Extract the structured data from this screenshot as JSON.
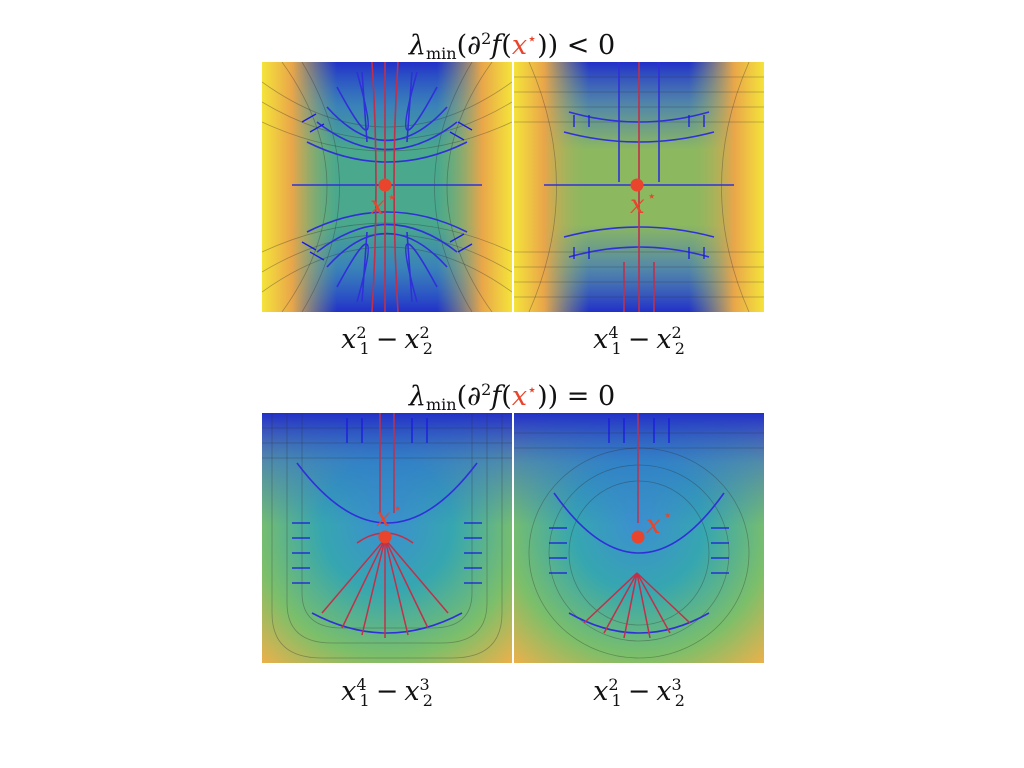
{
  "figure": {
    "top_title": {
      "lambda": "λ",
      "sub": "min",
      "open": "(∂",
      "sq": "2",
      "f": "f",
      "paren": "(",
      "x": "x",
      "star": "⋆",
      "close": "))",
      "relation": "< 0"
    },
    "bottom_title": {
      "lambda": "λ",
      "sub": "min",
      "open": "(∂",
      "sq": "2",
      "f": "f",
      "paren": "(",
      "x": "x",
      "star": "⋆",
      "close": "))",
      "relation": "= 0"
    },
    "point_label": "x",
    "point_star": "⋆",
    "panels": [
      {
        "id": "tl",
        "caption": {
          "a": "x",
          "a_sup": "2",
          "a_sub": "1",
          "op": "−",
          "b": "x",
          "b_sup": "2",
          "b_sub": "2"
        }
      },
      {
        "id": "tr",
        "caption": {
          "a": "x",
          "a_sup": "4",
          "a_sub": "1",
          "op": "−",
          "b": "x",
          "b_sup": "2",
          "b_sub": "2"
        }
      },
      {
        "id": "bl",
        "caption": {
          "a": "x",
          "a_sup": "4",
          "a_sub": "1",
          "op": "−",
          "b": "x",
          "b_sup": "3",
          "b_sub": "2"
        }
      },
      {
        "id": "br",
        "caption": {
          "a": "x",
          "a_sup": "2",
          "a_sub": "1",
          "op": "−",
          "b": "x",
          "b_sup": "3",
          "b_sub": "2"
        }
      }
    ],
    "colors": {
      "accent": "#e8452c",
      "flow_blue": "#1a1adf",
      "flow_red": "#c0304a"
    }
  }
}
